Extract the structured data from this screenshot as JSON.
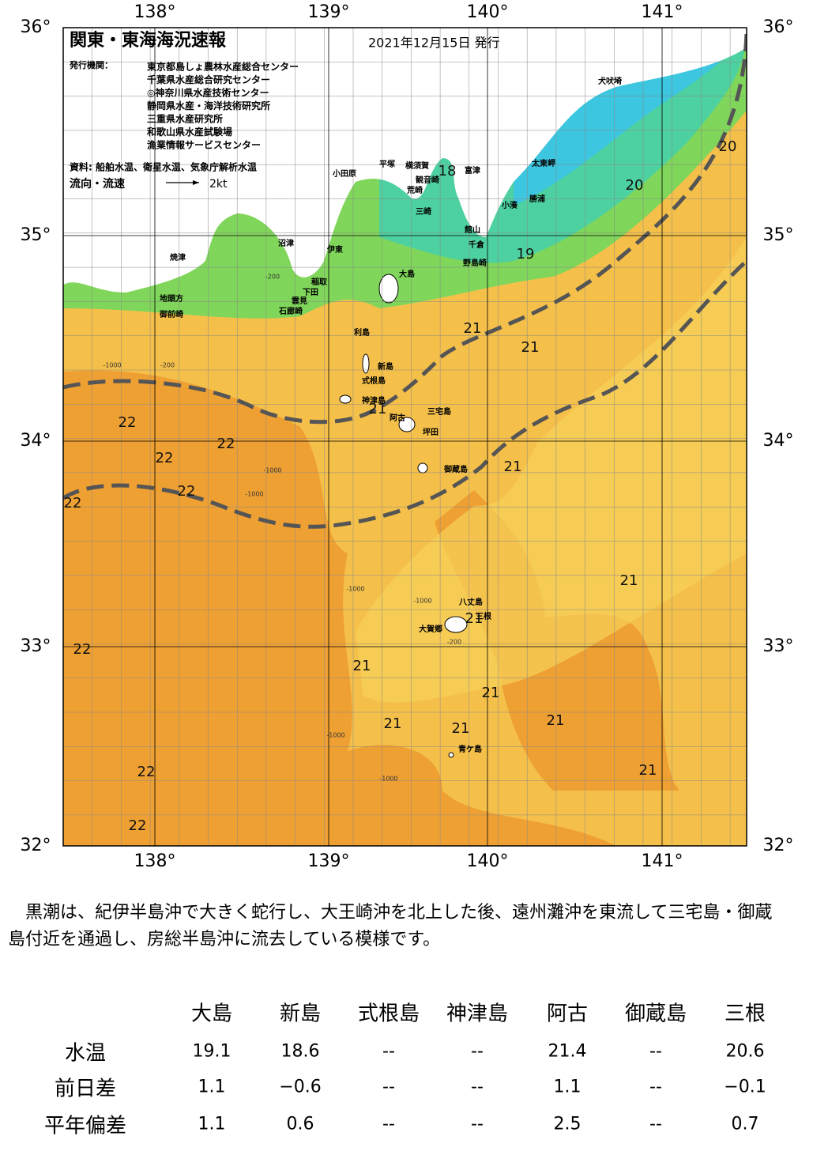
{
  "map": {
    "title": "関東・東海海況速報",
    "issued": "2021年12月15日 発行",
    "agencies_label": "発行機関：",
    "agencies": [
      "東京都島しょ農林水産総合センター",
      "千葉県水産総合研究センター",
      "◎神奈川県水産技術センター",
      "静岡県水産・海洋技術研究所",
      "三重県水産研究所",
      "和歌山県水産試験場",
      "漁業情報サービスセンター"
    ],
    "sources": "資料: 船舶水温、衛星水温、気象庁解析水温",
    "current_label": "流向・流速",
    "current_scale": "2kt",
    "lon_ticks": [
      "138°",
      "139°",
      "140°",
      "141°"
    ],
    "lat_ticks": [
      "36°",
      "35°",
      "34°",
      "33°",
      "32°"
    ],
    "places": [
      "犬吠埼",
      "太東岬",
      "勝浦",
      "小湊",
      "館山",
      "千倉",
      "野島崎",
      "富津",
      "横須賀",
      "観音崎",
      "荒崎",
      "三崎",
      "平塚",
      "小田原",
      "沼津",
      "伊東",
      "焼津",
      "稲取",
      "下田",
      "雲見",
      "石廊崎",
      "地頭方",
      "御前崎",
      "大島",
      "利島",
      "新島",
      "式根島",
      "神津島",
      "阿古",
      "三宅島",
      "坪田",
      "御蔵島",
      "八丈島",
      "三根",
      "大賀郷",
      "青ケ島"
    ],
    "isotherms": [
      18,
      20,
      20,
      19,
      21,
      21,
      21,
      22,
      22,
      22,
      22,
      22,
      21,
      21,
      21,
      22,
      21,
      21,
      21,
      21,
      21,
      22,
      21,
      22
    ],
    "depth_labels": [
      "-200",
      "-1000",
      "-200",
      "-1000",
      "-1000",
      "-1000",
      "-1000",
      "-1000",
      "-1000",
      "-200"
    ]
  },
  "summary": "黒潮は、紀伊半島沖で大きく蛇行し、大王崎沖を北上した後、遠州灘沖を東流して三宅島・御蔵島付近を通過し、房総半島沖に流去している模様です。",
  "table": {
    "columns": [
      "大島",
      "新島",
      "式根島",
      "神津島",
      "阿古",
      "御蔵島",
      "三根"
    ],
    "rows": [
      {
        "label": "水温",
        "values": [
          "19.1",
          "18.6",
          "--",
          "--",
          "21.4",
          "--",
          "20.6"
        ]
      },
      {
        "label": "前日差",
        "values": [
          "1.1",
          "−0.6",
          "--",
          "--",
          "1.1",
          "--",
          "−0.1"
        ]
      },
      {
        "label": "平年偏差",
        "values": [
          "1.1",
          "0.6",
          "--",
          "--",
          "2.5",
          "--",
          "0.7"
        ]
      }
    ]
  }
}
